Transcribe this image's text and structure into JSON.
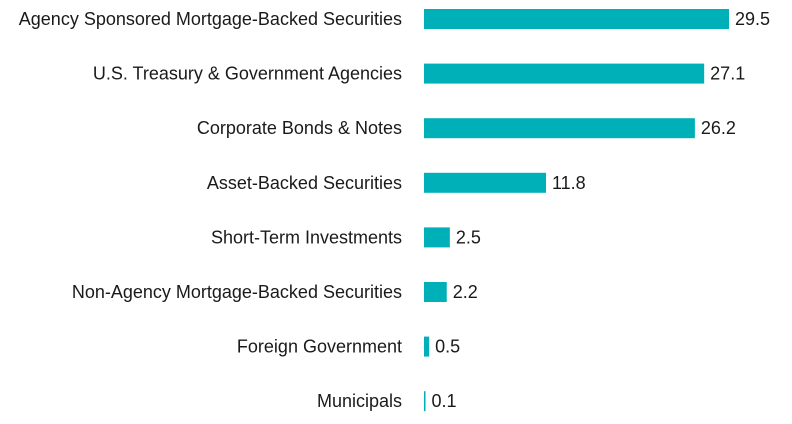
{
  "chart_data": {
    "type": "bar",
    "orientation": "horizontal",
    "categories": [
      "Agency Sponsored Mortgage-Backed Securities",
      "U.S. Treasury & Government Agencies",
      "Corporate Bonds & Notes",
      "Asset-Backed Securities",
      "Short-Term Investments",
      "Non-Agency Mortgage-Backed Securities",
      "Foreign Government",
      "Municipals"
    ],
    "values": [
      29.5,
      27.1,
      26.2,
      11.8,
      2.5,
      2.2,
      0.5,
      0.1
    ],
    "value_labels": [
      "29.5",
      "27.1",
      "26.2",
      "11.8",
      "2.5",
      "2.2",
      "0.5",
      "0.1"
    ],
    "title": "",
    "xlabel": "",
    "ylabel": "",
    "xlim": [
      0,
      29.5
    ],
    "grid": false,
    "legend": "none",
    "bar_color": "#00b0b9"
  }
}
